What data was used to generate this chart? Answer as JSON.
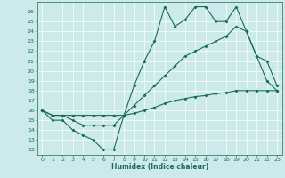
{
  "title": "",
  "xlabel": "Humidex (Indice chaleur)",
  "bg_color": "#cceaea",
  "line_color": "#1a6b5a",
  "xlim": [
    -0.5,
    23.5
  ],
  "ylim": [
    11.5,
    27.0
  ],
  "xticks": [
    0,
    1,
    2,
    3,
    4,
    5,
    6,
    7,
    8,
    9,
    10,
    11,
    12,
    13,
    14,
    15,
    16,
    17,
    18,
    19,
    20,
    21,
    22,
    23
  ],
  "yticks": [
    12,
    13,
    14,
    15,
    16,
    17,
    18,
    19,
    20,
    21,
    22,
    23,
    24,
    25,
    26
  ],
  "line1_x": [
    0,
    1,
    2,
    3,
    4,
    5,
    6,
    7,
    8,
    9,
    10,
    11,
    12,
    13,
    14,
    15,
    16,
    17,
    18,
    19,
    20,
    21,
    22,
    23
  ],
  "line1_y": [
    16,
    15,
    15,
    14,
    13.5,
    13,
    12,
    12,
    15.5,
    18.5,
    21,
    23,
    26.5,
    24.5,
    25.2,
    26.5,
    26.5,
    25,
    25,
    26.5,
    24,
    21.5,
    19,
    18
  ],
  "line2_x": [
    0,
    1,
    2,
    3,
    4,
    5,
    6,
    7,
    8,
    9,
    10,
    11,
    12,
    13,
    14,
    15,
    16,
    17,
    18,
    19,
    20,
    21,
    22,
    23
  ],
  "line2_y": [
    16,
    15.5,
    15.5,
    15,
    14.5,
    14.5,
    14.5,
    14.5,
    15.5,
    16.5,
    17.5,
    18.5,
    19.5,
    20.5,
    21.5,
    22,
    22.5,
    23,
    23.5,
    24.5,
    24,
    21.5,
    21,
    18.5
  ],
  "line3_x": [
    0,
    1,
    2,
    3,
    4,
    5,
    6,
    7,
    8,
    9,
    10,
    11,
    12,
    13,
    14,
    15,
    16,
    17,
    18,
    19,
    20,
    21,
    22,
    23
  ],
  "line3_y": [
    16,
    15.5,
    15.5,
    15.5,
    15.5,
    15.5,
    15.5,
    15.5,
    15.5,
    15.7,
    16,
    16.3,
    16.7,
    17,
    17.2,
    17.4,
    17.5,
    17.7,
    17.8,
    18,
    18,
    18,
    18,
    18
  ]
}
